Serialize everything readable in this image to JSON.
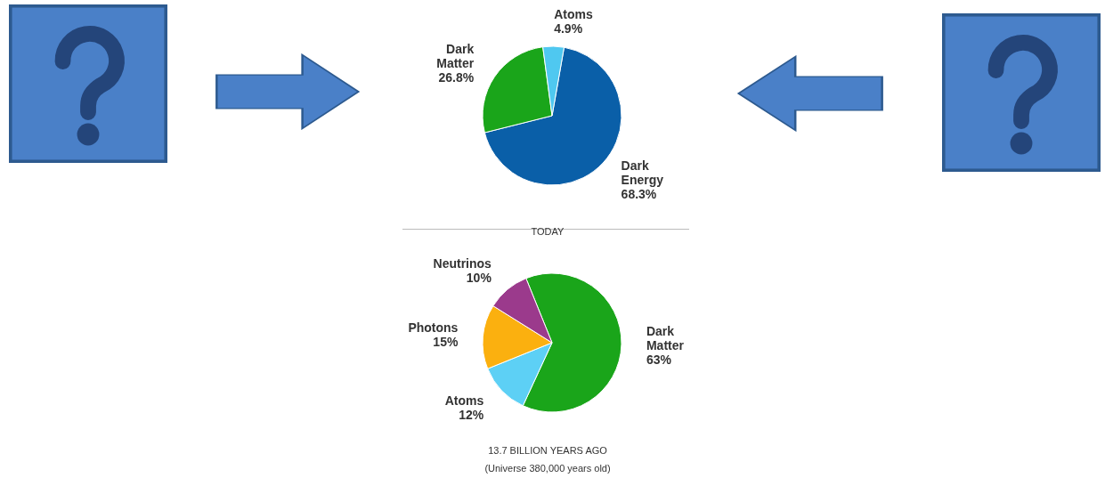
{
  "chart_data": [
    {
      "type": "pie",
      "categories": [
        "Dark Energy",
        "Dark Matter",
        "Atoms"
      ],
      "values": [
        68.3,
        26.8,
        4.9
      ],
      "colors": [
        "#0a5fa8",
        "#1aa51a",
        "#4fc8f0"
      ],
      "value_labels": [
        "68.3%",
        "26.8%",
        "4.9%"
      ],
      "annotations": [
        "TODAY"
      ]
    },
    {
      "type": "pie",
      "categories": [
        "Dark Matter",
        "Atoms",
        "Photons",
        "Neutrinos"
      ],
      "values": [
        63,
        12,
        15,
        10
      ],
      "colors": [
        "#1aa51a",
        "#5dd0f5",
        "#fbb00f",
        "#9b3a8c"
      ],
      "value_labels": [
        "63%",
        "12%",
        "15%",
        "10%"
      ],
      "annotations": [
        "13.7 BILLION YEARS AGO",
        "(Universe 380,000 years old)"
      ]
    }
  ]
}
